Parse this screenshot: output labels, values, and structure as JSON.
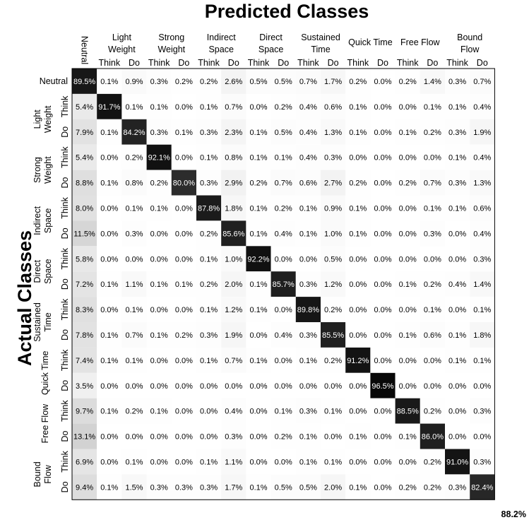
{
  "chart_data": {
    "type": "heatmap",
    "title": "Predicted Classes",
    "ylabel": "Actual Classes",
    "overall_accuracy": "88.2%",
    "column_groups": [
      {
        "label": [
          "Neutral"
        ],
        "subs": [
          ""
        ]
      },
      {
        "label": [
          "Light",
          "Weight"
        ],
        "subs": [
          "Think",
          "Do"
        ]
      },
      {
        "label": [
          "Strong",
          "Weight"
        ],
        "subs": [
          "Think",
          "Do"
        ]
      },
      {
        "label": [
          "Indirect",
          "Space"
        ],
        "subs": [
          "Think",
          "Do"
        ]
      },
      {
        "label": [
          "Direct",
          "Space"
        ],
        "subs": [
          "Think",
          "Do"
        ]
      },
      {
        "label": [
          "Sustained",
          "Time"
        ],
        "subs": [
          "Think",
          "Do"
        ]
      },
      {
        "label": [
          "Quick Time"
        ],
        "subs": [
          "Think",
          "Do"
        ]
      },
      {
        "label": [
          "Free Flow"
        ],
        "subs": [
          "Think",
          "Do"
        ]
      },
      {
        "label": [
          "Bound",
          "Flow"
        ],
        "subs": [
          "Think",
          "Do"
        ]
      }
    ],
    "row_groups": [
      {
        "label": [
          "Neutral"
        ],
        "subs": [
          ""
        ]
      },
      {
        "label": [
          "Light",
          "Weight"
        ],
        "subs": [
          "Think",
          "Do"
        ]
      },
      {
        "label": [
          "Strong",
          "Weight"
        ],
        "subs": [
          "Think",
          "Do"
        ]
      },
      {
        "label": [
          "Indirect",
          "Space"
        ],
        "subs": [
          "Think",
          "Do"
        ]
      },
      {
        "label": [
          "Direct",
          "Space"
        ],
        "subs": [
          "Think",
          "Do"
        ]
      },
      {
        "label": [
          "Sustained",
          "Time"
        ],
        "subs": [
          "Think",
          "Do"
        ]
      },
      {
        "label": [
          "Quick Time"
        ],
        "subs": [
          "Think",
          "Do"
        ]
      },
      {
        "label": [
          "Free Flow"
        ],
        "subs": [
          "Think",
          "Do"
        ]
      },
      {
        "label": [
          "Bound",
          "Flow"
        ],
        "subs": [
          "Think",
          "Do"
        ]
      }
    ],
    "values": [
      [
        89.5,
        0.1,
        0.9,
        0.3,
        0.2,
        0.2,
        2.6,
        0.5,
        0.5,
        0.7,
        1.7,
        0.2,
        0.0,
        0.2,
        1.4,
        0.3,
        0.7
      ],
      [
        5.4,
        91.7,
        0.1,
        0.1,
        0.0,
        0.1,
        0.7,
        0.0,
        0.2,
        0.4,
        0.6,
        0.1,
        0.0,
        0.0,
        0.1,
        0.1,
        0.4
      ],
      [
        7.9,
        0.1,
        84.2,
        0.3,
        0.1,
        0.3,
        2.3,
        0.1,
        0.5,
        0.4,
        1.3,
        0.1,
        0.0,
        0.1,
        0.2,
        0.3,
        1.9
      ],
      [
        5.4,
        0.0,
        0.2,
        92.1,
        0.0,
        0.1,
        0.8,
        0.1,
        0.1,
        0.4,
        0.3,
        0.0,
        0.0,
        0.0,
        0.0,
        0.1,
        0.4
      ],
      [
        8.8,
        0.1,
        0.8,
        0.2,
        80.0,
        0.3,
        2.9,
        0.2,
        0.7,
        0.6,
        2.7,
        0.2,
        0.0,
        0.2,
        0.7,
        0.3,
        1.3
      ],
      [
        8.0,
        0.0,
        0.1,
        0.1,
        0.0,
        87.8,
        1.8,
        0.1,
        0.2,
        0.1,
        0.9,
        0.1,
        0.0,
        0.0,
        0.1,
        0.1,
        0.6
      ],
      [
        11.5,
        0.0,
        0.3,
        0.0,
        0.0,
        0.2,
        85.6,
        0.1,
        0.4,
        0.1,
        1.0,
        0.1,
        0.0,
        0.0,
        0.3,
        0.0,
        0.4
      ],
      [
        5.8,
        0.0,
        0.0,
        0.0,
        0.0,
        0.1,
        1.0,
        92.2,
        0.0,
        0.0,
        0.5,
        0.0,
        0.0,
        0.0,
        0.0,
        0.0,
        0.3
      ],
      [
        7.2,
        0.1,
        1.1,
        0.1,
        0.1,
        0.2,
        2.0,
        0.1,
        85.7,
        0.3,
        1.2,
        0.0,
        0.0,
        0.1,
        0.2,
        0.4,
        1.4
      ],
      [
        8.3,
        0.0,
        0.1,
        0.0,
        0.0,
        0.1,
        1.2,
        0.1,
        0.0,
        89.8,
        0.2,
        0.0,
        0.0,
        0.0,
        0.1,
        0.0,
        0.1
      ],
      [
        7.8,
        0.1,
        0.7,
        0.1,
        0.2,
        0.3,
        1.9,
        0.0,
        0.4,
        0.3,
        85.5,
        0.0,
        0.0,
        0.1,
        0.6,
        0.1,
        1.8
      ],
      [
        7.4,
        0.1,
        0.1,
        0.0,
        0.0,
        0.1,
        0.7,
        0.1,
        0.0,
        0.1,
        0.2,
        91.2,
        0.0,
        0.0,
        0.0,
        0.1,
        0.1
      ],
      [
        3.5,
        0.0,
        0.0,
        0.0,
        0.0,
        0.0,
        0.0,
        0.0,
        0.0,
        0.0,
        0.0,
        0.0,
        96.5,
        0.0,
        0.0,
        0.0,
        0.0
      ],
      [
        9.7,
        0.1,
        0.2,
        0.1,
        0.0,
        0.0,
        0.4,
        0.0,
        0.1,
        0.3,
        0.1,
        0.0,
        0.0,
        88.5,
        0.2,
        0.0,
        0.3
      ],
      [
        13.1,
        0.0,
        0.0,
        0.0,
        0.0,
        0.0,
        0.3,
        0.0,
        0.2,
        0.1,
        0.0,
        0.1,
        0.0,
        0.1,
        86.0,
        0.0,
        0.0
      ],
      [
        6.9,
        0.0,
        0.1,
        0.0,
        0.0,
        0.1,
        1.1,
        0.0,
        0.0,
        0.1,
        0.1,
        0.0,
        0.0,
        0.0,
        0.2,
        91.0,
        0.3
      ],
      [
        9.4,
        0.1,
        1.5,
        0.3,
        0.3,
        0.3,
        1.7,
        0.1,
        0.5,
        0.5,
        2.0,
        0.1,
        0.0,
        0.2,
        0.2,
        0.3,
        82.4
      ]
    ],
    "value_format": "percent_1dp",
    "colors": {
      "low": "#ffffff",
      "high": "#000000",
      "background": "#ffffff"
    }
  }
}
